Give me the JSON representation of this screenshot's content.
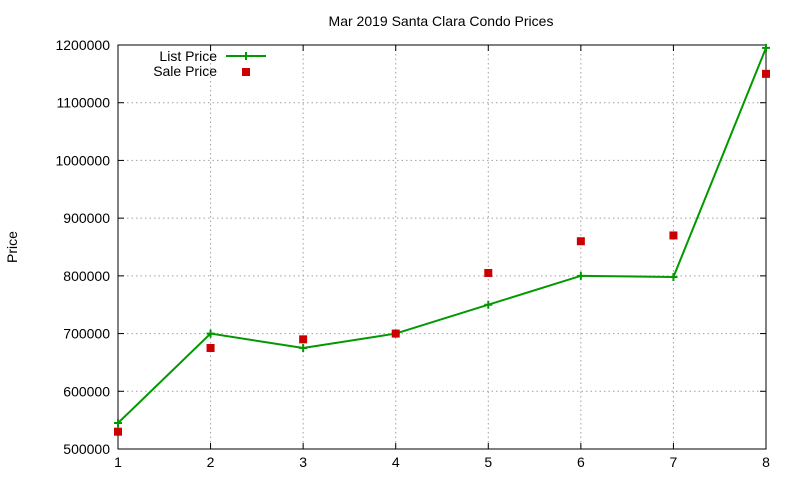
{
  "chart_data": {
    "type": "line",
    "title": "Mar 2019 Santa Clara Condo Prices",
    "xlabel": "",
    "ylabel": "Price",
    "x": [
      1,
      2,
      3,
      4,
      5,
      6,
      7,
      8
    ],
    "xlim": [
      1,
      8
    ],
    "ylim": [
      500000,
      1200000
    ],
    "xticks": [
      "1",
      "2",
      "3",
      "4",
      "5",
      "6",
      "7",
      "8"
    ],
    "yticks": [
      "500000",
      "600000",
      "700000",
      "800000",
      "900000",
      "1000000",
      "1100000",
      "1200000"
    ],
    "grid": true,
    "legend_position": "top-left",
    "series": [
      {
        "name": "List Price",
        "style": "line-with-plus-markers",
        "color": "#009900",
        "values": [
          545000,
          700000,
          675000,
          700000,
          750000,
          800000,
          798000,
          1195000
        ]
      },
      {
        "name": "Sale Price",
        "style": "square-markers",
        "color": "#cc0000",
        "values": [
          530000,
          675000,
          690000,
          700000,
          805000,
          860000,
          870000,
          1150000
        ]
      }
    ]
  }
}
